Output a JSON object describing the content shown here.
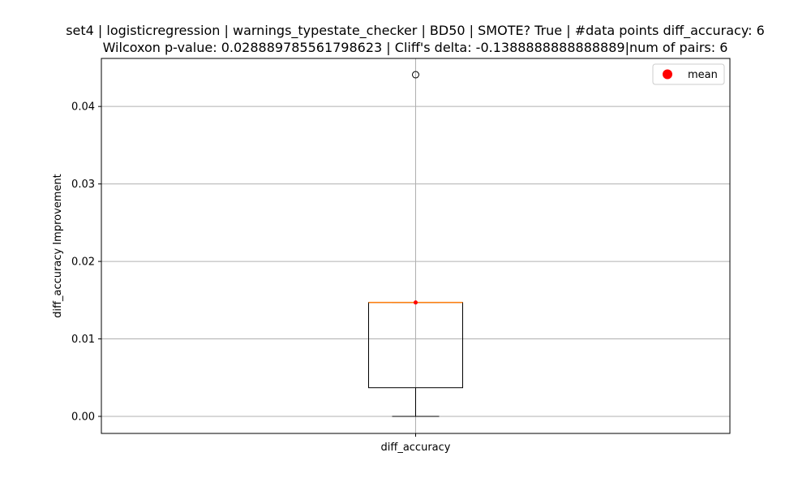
{
  "chart_data": {
    "type": "box",
    "title": [
      "set4 | logisticregression | warnings_typestate_checker | BD50 | SMOTE? True | #data points diff_accuracy: 6",
      "Wilcoxon p-value: 0.028889785561798623 | Cliff's delta: -0.1388888888888889|num of pairs: 6"
    ],
    "xlabel": "",
    "ylabel": "diff_accuracy Improvement",
    "categories": [
      "diff_accuracy"
    ],
    "ylim": [
      -0.0022,
      0.0462
    ],
    "yticks": [
      0.0,
      0.01,
      0.02,
      0.03,
      0.04
    ],
    "ytick_labels": [
      "0.00",
      "0.01",
      "0.02",
      "0.03",
      "0.04"
    ],
    "grid": true,
    "legend": {
      "position": "top-right",
      "entries": [
        {
          "label": "mean",
          "color": "#ff0000"
        }
      ]
    },
    "boxes": [
      {
        "name": "diff_accuracy",
        "whisker_low": 0.0,
        "q1": 0.0037,
        "median": 0.0147,
        "q3": 0.0147,
        "whisker_high": 0.0147,
        "mean": 0.0147,
        "outliers": [
          0.0441
        ]
      }
    ],
    "colors": {
      "box": "#000000",
      "median": "#ff7f0e",
      "mean": "#ff0000",
      "grid": "#b0b0b0"
    }
  }
}
